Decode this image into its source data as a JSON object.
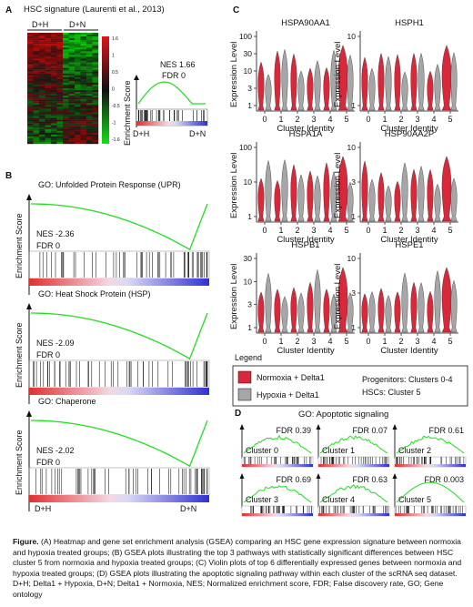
{
  "panels": {
    "a": {
      "letter": "A",
      "title": "HSC signature (Laurenti et al., 2013)",
      "group_left": "D+H",
      "group_right": "D+N",
      "colorbar_ticks": [
        "1.6",
        "1",
        "0.5",
        "0",
        "-0.5",
        "-1",
        "-1.6"
      ],
      "nes": "NES 1.66",
      "fdr": "FDR 0",
      "ylabel": "Enrichment Score",
      "x_left": "D+H",
      "x_right": "D+N"
    },
    "b": {
      "letter": "B",
      "ylabel": "Enrichment Score",
      "x_left": "D+H",
      "x_right": "D+N",
      "plots": [
        {
          "title": "GO: Unfolded Protein Response (UPR)",
          "nes": "NES -2.36",
          "fdr": "FDR 0"
        },
        {
          "title": "GO: Heat Shock Protein (HSP)",
          "nes": "NES -2.09",
          "fdr": "FDR 0"
        },
        {
          "title": "GO: Chaperone",
          "nes": "NES -2.02",
          "fdr": "FDR 0"
        }
      ]
    },
    "c": {
      "letter": "C",
      "ylabel": "Expression Level",
      "xlabel": "Cluster Identity",
      "clusters": [
        "0",
        "1",
        "2",
        "3",
        "4",
        "5"
      ],
      "genes": [
        {
          "name": "HSPA90AA1",
          "ticks": [
            "100",
            "30",
            "10",
            "3",
            "1"
          ]
        },
        {
          "name": "HSPH1",
          "ticks": [
            "10",
            "1"
          ]
        },
        {
          "name": "HSPA1A",
          "ticks": [
            "100",
            "10",
            "1"
          ]
        },
        {
          "name": "HSP90AA2P",
          "ticks": [
            "10",
            "3",
            "1"
          ]
        },
        {
          "name": "HSPB1",
          "ticks": [
            "30",
            "10",
            "3",
            "1"
          ]
        },
        {
          "name": "HSPE1",
          "ticks": [
            "10",
            "3",
            "1"
          ]
        }
      ],
      "legend": {
        "title": "Legend",
        "items": [
          {
            "label": "Normoxia + Delta1",
            "color": "#d8283a"
          },
          {
            "label": "Hypoxia + Delta1",
            "color": "#a6a6a6"
          }
        ],
        "note1": "Progenitors: Clusters 0-4",
        "note2": "HSCs: Cluster 5"
      }
    },
    "d": {
      "letter": "D",
      "title": "GO: Apoptotic signaling",
      "plots": [
        {
          "cluster": "Cluster 0",
          "fdr": "FDR 0.39"
        },
        {
          "cluster": "Cluster 1",
          "fdr": "FDR 0.07"
        },
        {
          "cluster": "Cluster 2",
          "fdr": "FDR 0.61"
        },
        {
          "cluster": "Cluster 3",
          "fdr": "FDR 0.69"
        },
        {
          "cluster": "Cluster 4",
          "fdr": "FDR 0.63"
        },
        {
          "cluster": "Cluster 5",
          "fdr": "FDR 0.003"
        }
      ]
    }
  },
  "caption": {
    "lead": "Figure.",
    "text": "(A) Heatmap and gene set enrichment analysis (GSEA) comparing an HSC gene expression signature between normoxia and hypoxia treated groups; (B) GSEA plots illustrating the top 3 pathways with statistically significant differences between HSC cluster 5 from normoxia and hypoxia treated groups; (C) Violin plots of top 6 differentially expressed genes between normoxia and hypoxia treated groups; (D) GSEA plots illustrating the apoptotic signaling pathway within each cluster of the scRNA seq dataset. D+H; Delta1 + Hypoxia, D+N; Delta1 + Normoxia, NES; Normalized enrichment score, FDR; False discovery rate, GO; Gene ontology"
  },
  "colors": {
    "enrichment_line": "#22dd22",
    "normoxia": "#d8283a",
    "hypoxia": "#a6a6a6",
    "heat_high": "#e0141e",
    "heat_low": "#14e014",
    "rank_pos": "#e03030",
    "rank_neg": "#3030d0"
  }
}
